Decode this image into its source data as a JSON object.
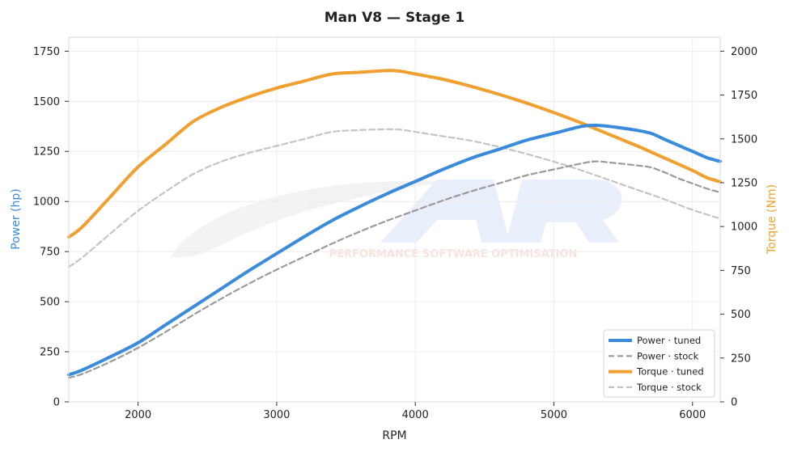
{
  "chart_data": {
    "type": "line",
    "title": "Man V8 — Stage 1",
    "xlabel": "RPM",
    "ylabel_left": "Power (hp)",
    "ylabel_right": "Torque (Nm)",
    "xlim": [
      1500,
      6200
    ],
    "ylim_left": [
      0,
      1820
    ],
    "ylim_right": [
      0,
      2080
    ],
    "x_ticks": [
      2000,
      3000,
      4000,
      5000,
      6000
    ],
    "y_ticks_left": [
      0,
      250,
      500,
      750,
      1000,
      1250,
      1500,
      1750
    ],
    "y_ticks_right": [
      0,
      250,
      500,
      750,
      1000,
      1250,
      1500,
      1750,
      2000
    ],
    "grid": true,
    "legend_position": "bottom-right",
    "watermark_text": "PERFORMANCE SOFTWARE OPTIMISATION",
    "series": [
      {
        "name": "Power · tuned",
        "axis": "left",
        "color": "#3a8bdb",
        "dash": "solid",
        "x": [
          1500,
          1600,
          1800,
          2000,
          2200,
          2400,
          2600,
          2800,
          3000,
          3200,
          3400,
          3600,
          3800,
          4000,
          4200,
          4400,
          4600,
          4800,
          5000,
          5200,
          5300,
          5400,
          5600,
          5700,
          5800,
          5900,
          6000,
          6100,
          6200
        ],
        "y": [
          135,
          160,
          225,
          295,
          385,
          475,
          565,
          655,
          740,
          825,
          905,
          975,
          1040,
          1100,
          1160,
          1215,
          1260,
          1305,
          1340,
          1375,
          1380,
          1375,
          1355,
          1340,
          1310,
          1280,
          1250,
          1220,
          1200
        ]
      },
      {
        "name": "Power · stock",
        "axis": "left",
        "color": "#9a9a9a",
        "dash": "dashed",
        "x": [
          1500,
          1600,
          1800,
          2000,
          2200,
          2400,
          2600,
          2800,
          3000,
          3200,
          3400,
          3600,
          3800,
          4000,
          4200,
          4400,
          4600,
          4800,
          5000,
          5200,
          5300,
          5400,
          5600,
          5700,
          5800,
          5900,
          6000,
          6100,
          6200
        ],
        "y": [
          120,
          140,
          200,
          270,
          350,
          435,
          515,
          590,
          660,
          725,
          790,
          850,
          905,
          955,
          1005,
          1050,
          1090,
          1130,
          1160,
          1190,
          1200,
          1195,
          1180,
          1170,
          1145,
          1115,
          1090,
          1065,
          1045
        ]
      },
      {
        "name": "Torque · tuned",
        "axis": "right",
        "color": "#f0a030",
        "dash": "solid",
        "x": [
          1500,
          1600,
          1800,
          2000,
          2200,
          2400,
          2600,
          2800,
          3000,
          3200,
          3400,
          3600,
          3800,
          3900,
          4000,
          4200,
          4400,
          4600,
          4800,
          5000,
          5200,
          5400,
          5600,
          5800,
          6000,
          6100,
          6200
        ],
        "y": [
          940,
          1000,
          1170,
          1340,
          1470,
          1600,
          1680,
          1740,
          1790,
          1830,
          1870,
          1880,
          1890,
          1885,
          1870,
          1840,
          1800,
          1755,
          1705,
          1650,
          1590,
          1525,
          1460,
          1390,
          1320,
          1280,
          1255
        ]
      },
      {
        "name": "Torque · stock",
        "axis": "right",
        "color": "#c4c4c4",
        "dash": "dashed",
        "x": [
          1500,
          1600,
          1800,
          2000,
          2200,
          2400,
          2600,
          2800,
          3000,
          3200,
          3400,
          3600,
          3800,
          3900,
          4000,
          4200,
          4400,
          4600,
          4800,
          5000,
          5200,
          5400,
          5600,
          5800,
          6000,
          6200
        ],
        "y": [
          770,
          825,
          960,
          1090,
          1200,
          1300,
          1370,
          1420,
          1460,
          1500,
          1540,
          1550,
          1555,
          1552,
          1540,
          1515,
          1490,
          1455,
          1415,
          1370,
          1320,
          1265,
          1210,
          1155,
          1095,
          1045
        ]
      }
    ]
  }
}
